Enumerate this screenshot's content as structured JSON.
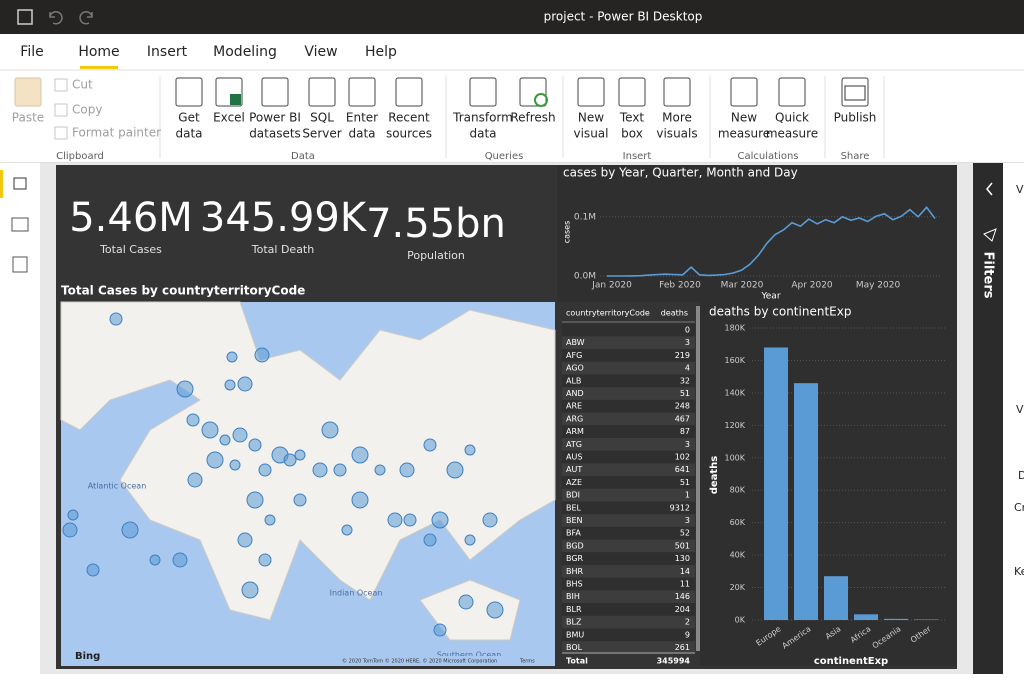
{
  "window": {
    "title": "project - Power BI Desktop"
  },
  "tabs": [
    "File",
    "Home",
    "Insert",
    "Modeling",
    "View",
    "Help"
  ],
  "ribbon": {
    "groups": [
      {
        "name": "Clipboard",
        "buttons": [
          {
            "lines": [
              "Paste"
            ]
          },
          {
            "lines": [
              "Cut"
            ]
          },
          {
            "lines": [
              "Copy"
            ]
          },
          {
            "lines": [
              "Format painter"
            ]
          }
        ]
      },
      {
        "name": "Data",
        "buttons": [
          {
            "lines": [
              "Get",
              "data"
            ]
          },
          {
            "lines": [
              "Excel"
            ]
          },
          {
            "lines": [
              "Power BI",
              "datasets"
            ]
          },
          {
            "lines": [
              "SQL",
              "Server"
            ]
          },
          {
            "lines": [
              "Enter",
              "data"
            ]
          },
          {
            "lines": [
              "Recent",
              "sources"
            ]
          }
        ]
      },
      {
        "name": "Queries",
        "buttons": [
          {
            "lines": [
              "Transform",
              "data"
            ]
          },
          {
            "lines": [
              "Refresh"
            ]
          }
        ]
      },
      {
        "name": "Insert",
        "buttons": [
          {
            "lines": [
              "New",
              "visual"
            ]
          },
          {
            "lines": [
              "Text",
              "box"
            ]
          },
          {
            "lines": [
              "More",
              "visuals"
            ]
          }
        ]
      },
      {
        "name": "Calculations",
        "buttons": [
          {
            "lines": [
              "New",
              "measure"
            ]
          },
          {
            "lines": [
              "Quick",
              "measure"
            ]
          }
        ]
      },
      {
        "name": "Share",
        "buttons": [
          {
            "lines": [
              "Publish"
            ]
          }
        ]
      }
    ]
  },
  "cards": [
    {
      "value": "5.46M",
      "label": "Total Cases"
    },
    {
      "value": "345.99K",
      "label": "Total Death"
    },
    {
      "value": "7.55bn",
      "label": "Population"
    }
  ],
  "line_chart": {
    "title": "cases by Year, Quarter, Month and Day",
    "y_title": "cases",
    "x_title": "Year",
    "x_labels": [
      "Jan 2020",
      "Feb 2020",
      "Mar 2020",
      "Apr 2020",
      "May 2020"
    ],
    "ylim": [
      0,
      130000
    ],
    "yticks": [
      {
        "value": 0,
        "label": "0.0M"
      },
      {
        "value": 100000,
        "label": "0.1M"
      }
    ],
    "color": "#5b9bd5",
    "values": [
      0,
      0,
      0,
      100,
      500,
      1500,
      2500,
      3000,
      2500,
      2000,
      15000,
      2000,
      1000,
      1500,
      2500,
      5000,
      10000,
      20000,
      35000,
      55000,
      70000,
      78000,
      90000,
      84000,
      96000,
      88000,
      95000,
      90000,
      100000,
      94000,
      98000,
      92000,
      101000,
      105000,
      95000,
      101000,
      112000,
      100000,
      116000,
      97000
    ]
  },
  "map": {
    "title": "Total Cases by countryterritoryCode",
    "labels": [
      "Atlantic Ocean",
      "Indian Ocean",
      "Southern Ocean"
    ],
    "provider": "Bing",
    "copyright": "© 2020 TomTom © 2020 HERE, © 2020 Microsoft Corporation",
    "terms": "Terms"
  },
  "table": {
    "columns": [
      "countryterritoryCode",
      "deaths"
    ],
    "rows": [
      [
        null,
        "0"
      ],
      [
        "ABW",
        "3"
      ],
      [
        "AFG",
        "219"
      ],
      [
        "AGO",
        "4"
      ],
      [
        "ALB",
        "32"
      ],
      [
        "AND",
        "51"
      ],
      [
        "ARE",
        "248"
      ],
      [
        "ARG",
        "467"
      ],
      [
        "ARM",
        "87"
      ],
      [
        "ATG",
        "3"
      ],
      [
        "AUS",
        "102"
      ],
      [
        "AUT",
        "641"
      ],
      [
        "AZE",
        "51"
      ],
      [
        "BDI",
        "1"
      ],
      [
        "BEL",
        "9312"
      ],
      [
        "BEN",
        "3"
      ],
      [
        "BFA",
        "52"
      ],
      [
        "BGD",
        "501"
      ],
      [
        "BGR",
        "130"
      ],
      [
        "BHR",
        "14"
      ],
      [
        "BHS",
        "11"
      ],
      [
        "BIH",
        "146"
      ],
      [
        "BLR",
        "204"
      ],
      [
        "BLZ",
        "2"
      ],
      [
        "BMU",
        "9"
      ],
      [
        "BOL",
        "261"
      ]
    ],
    "total": [
      "Total",
      "345994"
    ]
  },
  "bar_chart": {
    "title": "deaths by continentExp",
    "y_title": "deaths",
    "x_title": "continentExp",
    "color": "#5b9bd5",
    "categories": [
      "Europe",
      "America",
      "Asia",
      "Africa",
      "Oceania",
      "Other"
    ],
    "values": [
      168000,
      146000,
      27000,
      3500,
      700,
      300
    ],
    "ylim": [
      0,
      180000
    ],
    "yticks": [
      {
        "value": 0,
        "label": "0K"
      },
      {
        "value": 20000,
        "label": "20K"
      },
      {
        "value": 40000,
        "label": "40K"
      },
      {
        "value": 60000,
        "label": "60K"
      },
      {
        "value": 80000,
        "label": "80K"
      },
      {
        "value": 100000,
        "label": "100K"
      },
      {
        "value": 120000,
        "label": "120K"
      },
      {
        "value": 140000,
        "label": "140K"
      },
      {
        "value": 160000,
        "label": "160K"
      },
      {
        "value": 180000,
        "label": "180K"
      }
    ]
  },
  "filters_pane": {
    "title": "Filters"
  },
  "right_pane": {
    "labels": [
      "V",
      "V",
      "D",
      "Cr",
      "Ke"
    ]
  }
}
